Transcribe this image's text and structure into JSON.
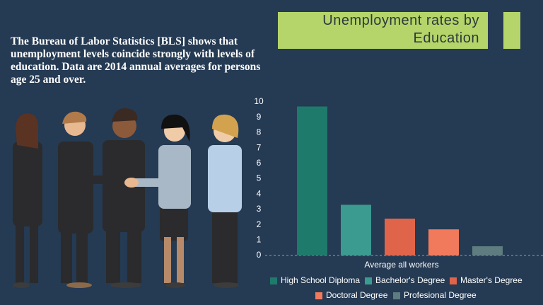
{
  "intro": "The Bureau of Labor Statistics [BLS] shows that unemployment levels coincide strongly with levels of education. Data are 2014 annual averages for persons age 25 and over.",
  "chart_data": {
    "type": "bar",
    "title": "Unemployment rates by Education",
    "categories": [
      "Average all workers"
    ],
    "series": [
      {
        "name": "High School Diploma",
        "color": "#1e7b6c",
        "values": [
          9.7
        ]
      },
      {
        "name": "Bachelor's Degree",
        "color": "#3b9b90",
        "values": [
          3.3
        ]
      },
      {
        "name": "Master's Degree",
        "color": "#e0644a",
        "values": [
          2.4
        ]
      },
      {
        "name": "Doctoral Degree",
        "color": "#f27a5c",
        "values": [
          1.7
        ]
      },
      {
        "name": "Profesional Degree",
        "color": "#5f7c80",
        "values": [
          0.6
        ]
      }
    ],
    "ylim": [
      0,
      10
    ],
    "yticks": [
      0,
      1,
      2,
      3,
      4,
      5,
      6,
      7,
      8,
      9,
      10
    ],
    "grid": false
  }
}
